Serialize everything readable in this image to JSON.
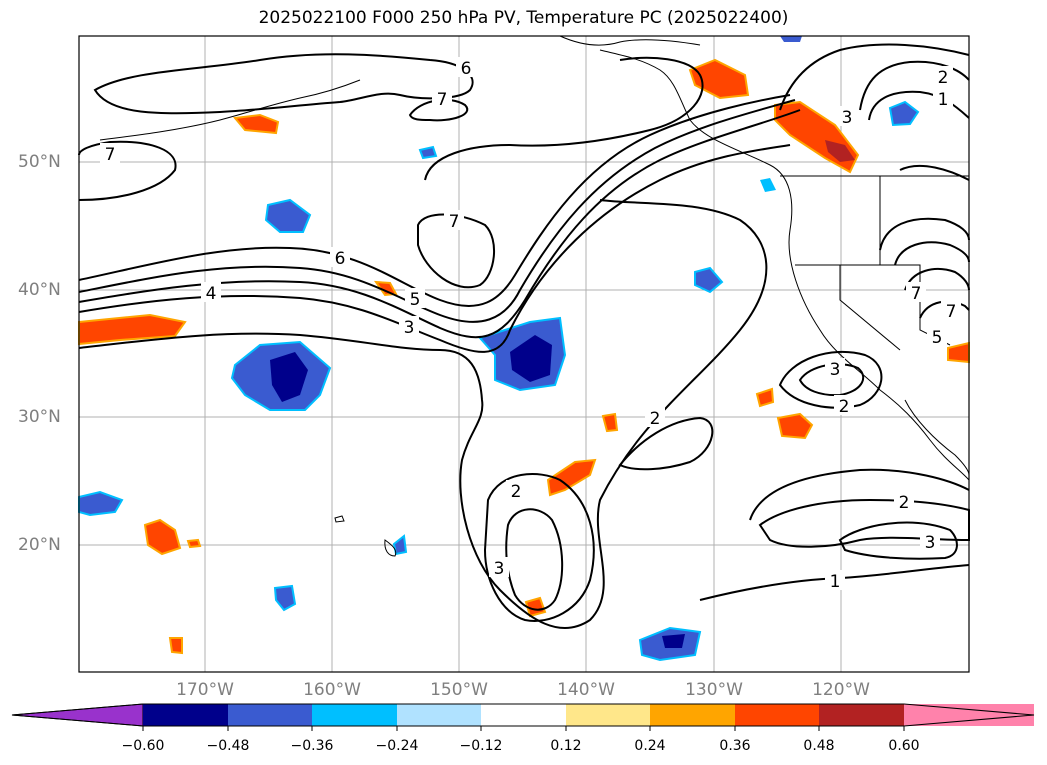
{
  "title": "2025022100 F000 250 hPa PV, Temperature PC (2025022400)",
  "lat_labels": [
    "50°N",
    "40°N",
    "30°N",
    "20°N"
  ],
  "lon_labels": [
    "170°W",
    "160°W",
    "150°W",
    "140°W",
    "130°W",
    "120°W"
  ],
  "contour_labels": [
    "6",
    "7",
    "7",
    "7",
    "6",
    "4",
    "5",
    "3",
    "2",
    "2",
    "2",
    "3",
    "3",
    "2",
    "3",
    "1",
    "2",
    "1",
    "3",
    "7",
    "5",
    "7"
  ],
  "colorbar": {
    "ticks": [
      "−0.60",
      "−0.48",
      "−0.36",
      "−0.24",
      "−0.12",
      "0.12",
      "0.24",
      "0.36",
      "0.48",
      "0.60"
    ],
    "colors": [
      "#9932cc",
      "#00008b",
      "#3a5bd0",
      "#00bfff",
      "#b0e2ff",
      "#ffffff",
      "#ffe78a",
      "#ffa500",
      "#ff4500",
      "#b22222",
      "#ff82ab"
    ]
  }
}
